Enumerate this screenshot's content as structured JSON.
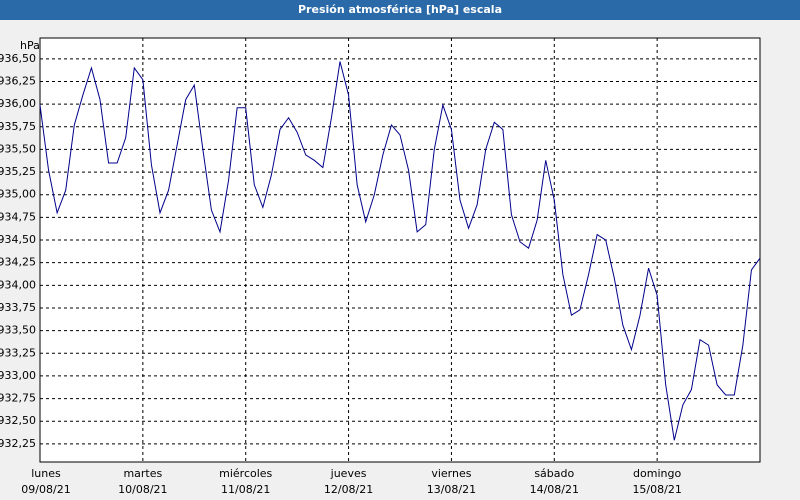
{
  "chart_data": {
    "type": "line",
    "title": "Presión atmosférica [hPa] escala",
    "y_unit": "hPa",
    "color": "#00008b",
    "grid": true,
    "ylim": [
      932.05,
      936.73
    ],
    "yticks": [
      {
        "value": 932.25,
        "label": "932,25"
      },
      {
        "value": 932.5,
        "label": "932,50"
      },
      {
        "value": 932.75,
        "label": "932,75"
      },
      {
        "value": 933,
        "label": "933,00"
      },
      {
        "value": 933.25,
        "label": "933,25"
      },
      {
        "value": 933.5,
        "label": "933,50"
      },
      {
        "value": 933.75,
        "label": "933,75"
      },
      {
        "value": 934,
        "label": "934,00"
      },
      {
        "value": 934.25,
        "label": "934,25"
      },
      {
        "value": 934.5,
        "label": "934,50"
      },
      {
        "value": 934.75,
        "label": "934,75"
      },
      {
        "value": 935,
        "label": "935,00"
      },
      {
        "value": 935.25,
        "label": "935,25"
      },
      {
        "value": 935.5,
        "label": "935,50"
      },
      {
        "value": 935.75,
        "label": "935,75"
      },
      {
        "value": 936,
        "label": "936,00"
      },
      {
        "value": 936.25,
        "label": "936,25"
      },
      {
        "value": 936.5,
        "label": "936,50"
      }
    ],
    "categories": [
      "lunes",
      null,
      null,
      null,
      null,
      null,
      null,
      null,
      null,
      null,
      null,
      null,
      "martes",
      null,
      null,
      null,
      null,
      null,
      null,
      null,
      null,
      null,
      null,
      null,
      "miércoles",
      null,
      null,
      null,
      null,
      null,
      null,
      null,
      null,
      null,
      null,
      null,
      "jueves",
      null,
      null,
      null,
      null,
      null,
      null,
      null,
      null,
      null,
      null,
      null,
      "viernes",
      null,
      null,
      null,
      null,
      null,
      null,
      null,
      null,
      null,
      null,
      null,
      "sábado",
      null,
      null,
      null,
      null,
      null,
      null,
      null,
      null,
      null,
      null,
      null,
      "domingo",
      null,
      null,
      null,
      null,
      null,
      null,
      null,
      null,
      null,
      null,
      null,
      null
    ],
    "dates": [
      "09/08/21",
      null,
      null,
      null,
      null,
      null,
      null,
      null,
      null,
      null,
      null,
      null,
      "10/08/21",
      null,
      null,
      null,
      null,
      null,
      null,
      null,
      null,
      null,
      null,
      null,
      "11/08/21",
      null,
      null,
      null,
      null,
      null,
      null,
      null,
      null,
      null,
      null,
      null,
      "12/08/21",
      null,
      null,
      null,
      null,
      null,
      null,
      null,
      null,
      null,
      null,
      null,
      "13/08/21",
      null,
      null,
      null,
      null,
      null,
      null,
      null,
      null,
      null,
      null,
      null,
      "14/08/21",
      null,
      null,
      null,
      null,
      null,
      null,
      null,
      null,
      null,
      null,
      null,
      "15/08/21",
      null,
      null,
      null,
      null,
      null,
      null,
      null,
      null,
      null,
      null,
      null,
      null
    ],
    "values": [
      935.99,
      935.27,
      934.8,
      935.05,
      935.77,
      936.1,
      936.4,
      936.05,
      935.35,
      935.35,
      935.63,
      936.4,
      936.27,
      935.33,
      934.8,
      935.05,
      935.55,
      936.05,
      936.21,
      935.5,
      934.83,
      934.59,
      935.16,
      935.96,
      935.96,
      935.11,
      934.86,
      935.22,
      935.72,
      935.85,
      935.69,
      935.44,
      935.38,
      935.3,
      935.85,
      936.47,
      936.1,
      935.11,
      934.7,
      935.0,
      935.44,
      935.77,
      935.66,
      935.27,
      934.59,
      934.67,
      935.5,
      935.99,
      935.72,
      934.94,
      934.63,
      934.89,
      935.5,
      935.8,
      935.72,
      934.78,
      934.48,
      934.41,
      934.72,
      935.38,
      934.94,
      934.12,
      933.67,
      933.73,
      934.12,
      934.56,
      934.5,
      934.08,
      933.56,
      933.29,
      933.67,
      934.19,
      933.89,
      932.9,
      932.29,
      932.68,
      932.85,
      933.4,
      933.34,
      932.9,
      932.79,
      932.79,
      933.34,
      934.17,
      934.3
    ]
  }
}
